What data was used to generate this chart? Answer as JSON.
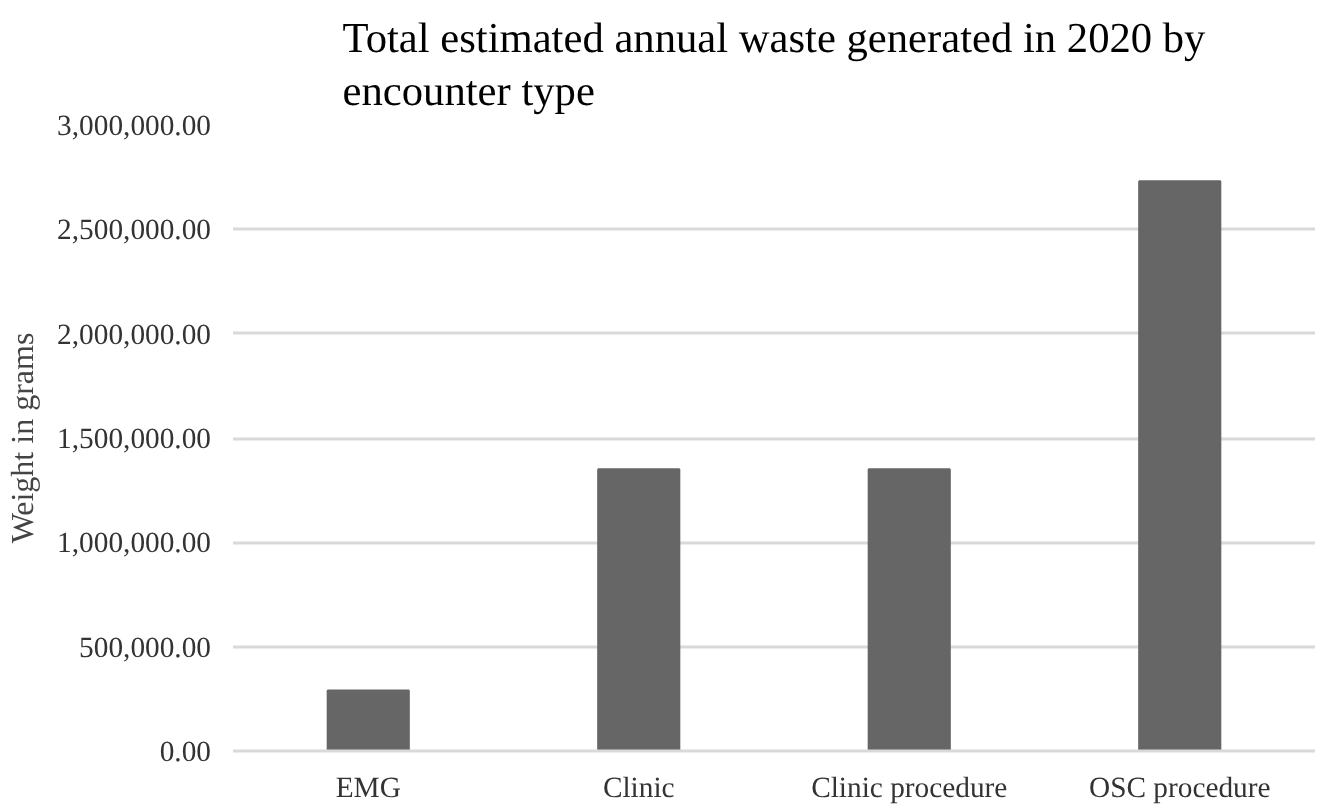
{
  "chart_data": {
    "type": "bar",
    "title": "Total estimated annual waste generated in 2020 by encounter type",
    "ylabel": "Weight in grams",
    "categories": [
      "EMG",
      "Clinic",
      "Clinic procedure",
      "OSC procedure"
    ],
    "values": [
      290000,
      1350000,
      1350000,
      2730000
    ],
    "color": "#666666",
    "ylim": [
      0,
      3000000
    ],
    "yticks": [
      {
        "value": 0,
        "label": "0.00"
      },
      {
        "value": 500000,
        "label": "500,000.00"
      },
      {
        "value": 1000000,
        "label": "1,000,000.00"
      },
      {
        "value": 1500000,
        "label": "1,500,000.00"
      },
      {
        "value": 2000000,
        "label": "2,000,000.00"
      },
      {
        "value": 2500000,
        "label": "2,500,000.00"
      },
      {
        "value": 3000000,
        "label": "3,000,000.00"
      }
    ],
    "grid": "y"
  }
}
